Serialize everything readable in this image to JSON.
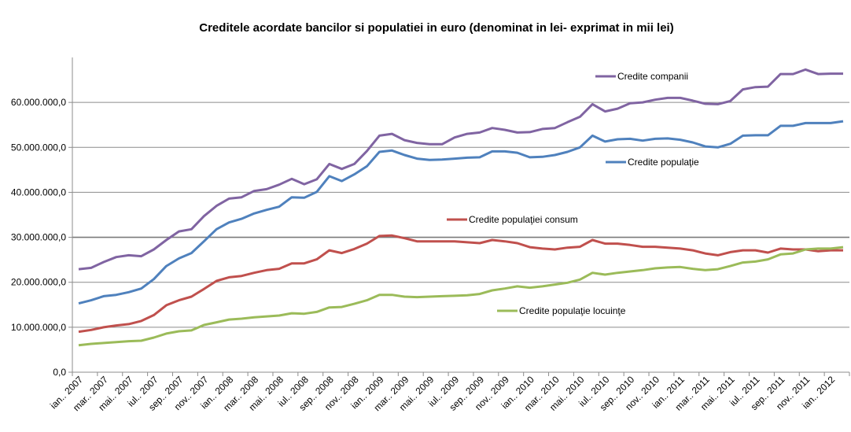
{
  "chart_data": {
    "type": "line",
    "title": "Creditele acordate bancilor si populatiei in euro (denominat in lei- exprimat in mii lei)",
    "xlabel": "",
    "ylabel": "",
    "value_multiplier": 1000000,
    "ylim": [
      0,
      70
    ],
    "y_ticks": [
      0,
      10,
      20,
      30,
      40,
      50,
      60
    ],
    "y_tick_labels": [
      "0,0",
      "10.000.000,0",
      "20.000.000,0",
      "30.000.000,0",
      "40.000.000,0",
      "50.000.000,0",
      "60.000.000,0"
    ],
    "grid": true,
    "months_count": 62,
    "x_tick_labels": [
      "ian.. 2007",
      "mar.. 2007",
      "mai.. 2007",
      "iul.. 2007",
      "sep.. 2007",
      "nov.. 2007",
      "ian.. 2008",
      "mar.. 2008",
      "mai.. 2008",
      "iul.. 2008",
      "sep.. 2008",
      "nov.. 2008",
      "ian.. 2009",
      "mar.. 2009",
      "mai.. 2009",
      "iul.. 2009",
      "sep.. 2009",
      "nov.. 2009",
      "ian.. 2010",
      "mar.. 2010",
      "mai.. 2010",
      "iul.. 2010",
      "sep.. 2010",
      "nov.. 2010",
      "ian.. 2011",
      "mar.. 2011",
      "mai.. 2011",
      "iul.. 2011",
      "sep.. 2011",
      "nov.. 2011",
      "ian.. 2012"
    ],
    "series": [
      {
        "name": "Credite companii",
        "color": "#8064A2",
        "legend_pos": "top-right",
        "values": [
          22.9,
          23.2,
          24.5,
          25.6,
          26.0,
          25.8,
          27.3,
          29.4,
          31.3,
          31.8,
          34.7,
          37.0,
          38.6,
          38.9,
          40.3,
          40.7,
          41.7,
          43.0,
          41.8,
          42.9,
          46.3,
          45.2,
          46.3,
          49.2,
          52.6,
          53.0,
          51.6,
          51.0,
          50.7,
          50.7,
          52.2,
          53.0,
          53.3,
          54.3,
          53.9,
          53.3,
          53.4,
          54.1,
          54.3,
          55.6,
          56.8,
          59.6,
          58.0,
          58.6,
          59.8,
          60.0,
          60.6,
          61.0,
          61.0,
          60.4,
          59.7,
          59.6,
          60.3,
          62.9,
          63.4,
          63.5,
          66.3,
          66.3,
          67.3,
          66.3,
          66.4,
          66.4
        ]
      },
      {
        "name": "Credite populaţie",
        "color": "#4F81BD",
        "legend_pos": "right",
        "values": [
          15.3,
          16.0,
          16.9,
          17.2,
          17.8,
          18.6,
          20.7,
          23.6,
          25.3,
          26.5,
          29.1,
          31.8,
          33.3,
          34.1,
          35.3,
          36.1,
          36.8,
          38.9,
          38.8,
          40.1,
          43.6,
          42.5,
          44.0,
          45.8,
          49.0,
          49.3,
          48.3,
          47.5,
          47.2,
          47.3,
          47.5,
          47.7,
          47.8,
          49.1,
          49.1,
          48.8,
          47.8,
          47.9,
          48.3,
          49.0,
          50.0,
          52.6,
          51.3,
          51.8,
          51.9,
          51.5,
          51.9,
          52.0,
          51.7,
          51.1,
          50.2,
          50.0,
          50.8,
          52.6,
          52.7,
          52.7,
          54.8,
          54.8,
          55.4,
          55.4,
          55.4,
          55.8
        ]
      },
      {
        "name": "Credite populaţiei consum",
        "color": "#C0504D",
        "legend_pos": "center",
        "values": [
          9.0,
          9.4,
          10.0,
          10.4,
          10.7,
          11.4,
          12.7,
          14.9,
          16.0,
          16.8,
          18.5,
          20.3,
          21.1,
          21.4,
          22.1,
          22.7,
          23.0,
          24.2,
          24.2,
          25.1,
          27.1,
          26.5,
          27.4,
          28.6,
          30.3,
          30.4,
          29.8,
          29.1,
          29.1,
          29.1,
          29.1,
          28.9,
          28.7,
          29.4,
          29.1,
          28.7,
          27.8,
          27.5,
          27.3,
          27.7,
          27.9,
          29.4,
          28.6,
          28.6,
          28.3,
          27.9,
          27.9,
          27.7,
          27.5,
          27.1,
          26.4,
          26.0,
          26.7,
          27.1,
          27.1,
          26.6,
          27.5,
          27.3,
          27.3,
          26.9,
          27.1,
          27.1
        ]
      },
      {
        "name": "Credite  populaţie locuinţe",
        "color": "#9BBB59",
        "legend_pos": "center-bottom",
        "values": [
          6.0,
          6.3,
          6.5,
          6.7,
          6.9,
          7.0,
          7.7,
          8.6,
          9.1,
          9.3,
          10.5,
          11.1,
          11.7,
          11.9,
          12.2,
          12.4,
          12.6,
          13.1,
          13.0,
          13.4,
          14.4,
          14.5,
          15.2,
          16.0,
          17.2,
          17.2,
          16.8,
          16.7,
          16.8,
          16.9,
          17.0,
          17.1,
          17.4,
          18.2,
          18.6,
          19.1,
          18.8,
          19.1,
          19.5,
          19.9,
          20.6,
          22.1,
          21.7,
          22.1,
          22.4,
          22.7,
          23.1,
          23.3,
          23.4,
          23.0,
          22.7,
          22.9,
          23.6,
          24.4,
          24.6,
          25.1,
          26.2,
          26.4,
          27.3,
          27.5,
          27.5,
          27.8
        ]
      }
    ]
  }
}
